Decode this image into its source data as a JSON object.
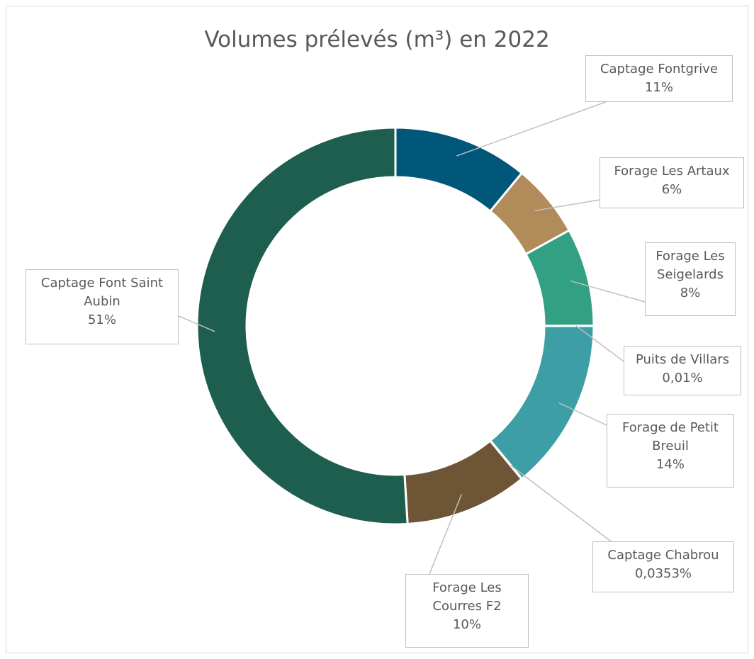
{
  "chart_data": {
    "type": "donut",
    "title": "Volumes prélevés (m³) en 2022",
    "categories": [
      "Captage Fontgrive",
      "Forage Les Artaux",
      "Forage Les Seigelards",
      "Puits de Villars",
      "Forage de Petit Breuil",
      "Captage Chabrou",
      "Forage Les Courres F2",
      "Captage Font Saint Aubin"
    ],
    "values": [
      11,
      6,
      8,
      0.01,
      14,
      0.0353,
      10,
      51
    ],
    "value_labels": [
      "11%",
      "6%",
      "8%",
      "0,01%",
      "14%",
      "0,0353%",
      "10%",
      "51%"
    ],
    "colors": [
      "#00577a",
      "#b28b5a",
      "#31a083",
      "#3a9a9a",
      "#3e9ea6",
      "#3e9ea6",
      "#6e5535",
      "#1e5e4e"
    ]
  }
}
